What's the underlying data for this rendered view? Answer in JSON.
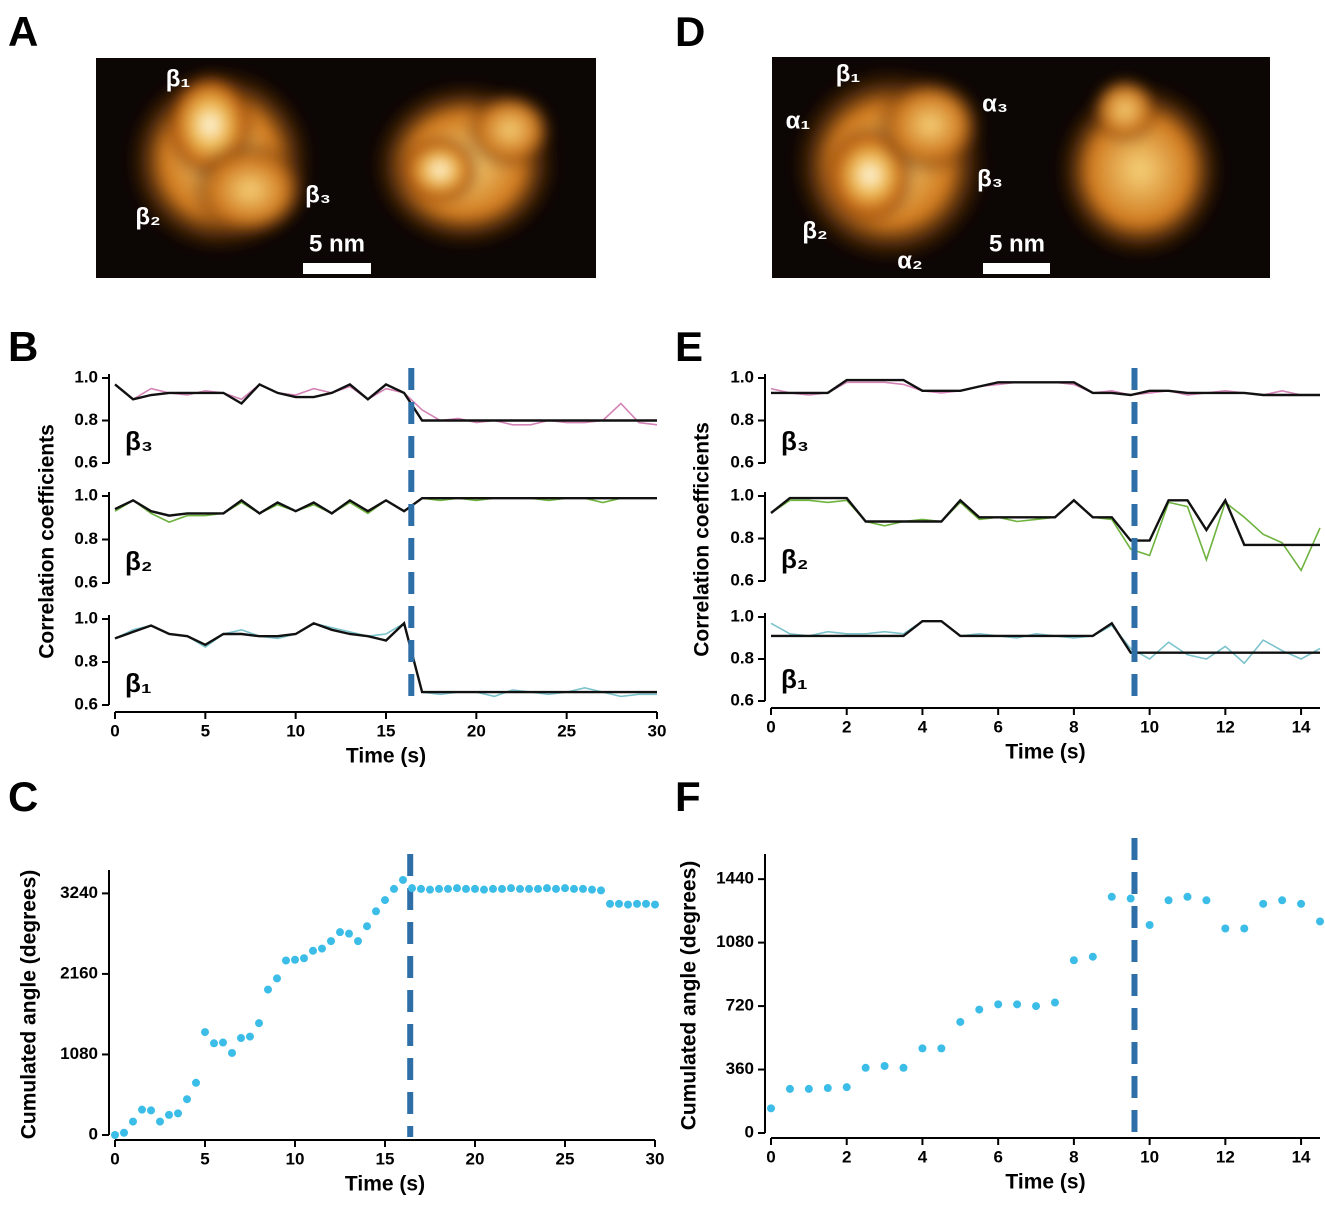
{
  "panel_labels": [
    "A",
    "B",
    "C",
    "D",
    "E",
    "F"
  ],
  "images": [
    {
      "labels": [
        "β₁",
        "β₂",
        "β₃"
      ],
      "scale_bar": "5 nm"
    },
    {
      "labels": [
        "β₁",
        "α₁",
        "α₃",
        "β₃",
        "β₂",
        "α₂"
      ],
      "scale_bar": "5 nm"
    }
  ],
  "chart_data": [
    {
      "type": "line",
      "xlabel": "Time (s)",
      "ylabel": "Correlation coefficients",
      "xlim": [
        0,
        30
      ],
      "xticks": [
        0,
        5,
        10,
        15,
        20,
        25,
        30
      ],
      "marker_x": 16.4,
      "marker_color": "#2f6fa8",
      "x": [
        0,
        1,
        2,
        3,
        4,
        5,
        6,
        7,
        8,
        9,
        10,
        11,
        12,
        13,
        14,
        15,
        16,
        17,
        18,
        19,
        20,
        21,
        22,
        23,
        24,
        25,
        26,
        27,
        28,
        29,
        30
      ],
      "subplots": [
        {
          "label": "β₃",
          "ylim": [
            0.6,
            1.0
          ],
          "yticks": [
            0.6,
            0.8,
            {
              "value": 1.0,
              "label": "1.0"
            }
          ],
          "trace": {
            "color": "#d383b6",
            "values": [
              0.97,
              0.9,
              0.95,
              0.93,
              0.92,
              0.94,
              0.93,
              0.9,
              0.97,
              0.93,
              0.92,
              0.95,
              0.93,
              0.96,
              0.9,
              0.95,
              0.93,
              0.85,
              0.8,
              0.81,
              0.79,
              0.8,
              0.78,
              0.78,
              0.8,
              0.79,
              0.79,
              0.8,
              0.88,
              0.79,
              0.78
            ]
          },
          "fit": {
            "color": "#111111",
            "values": [
              0.97,
              0.9,
              0.92,
              0.93,
              0.93,
              0.93,
              0.93,
              0.88,
              0.97,
              0.93,
              0.91,
              0.91,
              0.93,
              0.97,
              0.9,
              0.97,
              0.93,
              0.8,
              0.8,
              0.8,
              0.8,
              0.8,
              0.8,
              0.8,
              0.8,
              0.8,
              0.8,
              0.8,
              0.8,
              0.8,
              0.8
            ]
          }
        },
        {
          "label": "β₂",
          "ylim": [
            0.6,
            1.0
          ],
          "yticks": [
            0.6,
            0.8,
            {
              "value": 1.0,
              "label": "1.0"
            }
          ],
          "trace": {
            "color": "#6fb33f",
            "values": [
              0.93,
              0.98,
              0.92,
              0.88,
              0.91,
              0.91,
              0.92,
              0.97,
              0.92,
              0.96,
              0.93,
              0.96,
              0.92,
              0.97,
              0.92,
              0.98,
              0.93,
              0.99,
              0.98,
              0.99,
              0.98,
              0.99,
              0.99,
              0.99,
              0.98,
              0.99,
              0.99,
              0.97,
              0.99,
              0.99,
              0.99
            ]
          },
          "fit": {
            "color": "#111111",
            "values": [
              0.94,
              0.98,
              0.93,
              0.91,
              0.92,
              0.92,
              0.92,
              0.98,
              0.92,
              0.97,
              0.93,
              0.97,
              0.92,
              0.98,
              0.93,
              0.98,
              0.93,
              0.99,
              0.99,
              0.99,
              0.99,
              0.99,
              0.99,
              0.99,
              0.99,
              0.99,
              0.99,
              0.99,
              0.99,
              0.99,
              0.99
            ]
          }
        },
        {
          "label": "β₁",
          "ylim": [
            0.6,
            1.0
          ],
          "yticks": [
            0.6,
            0.8,
            {
              "value": 1.0,
              "label": "1.0"
            }
          ],
          "trace": {
            "color": "#7cc3cc",
            "values": [
              0.91,
              0.95,
              0.97,
              0.93,
              0.92,
              0.87,
              0.93,
              0.95,
              0.92,
              0.91,
              0.93,
              0.98,
              0.96,
              0.94,
              0.92,
              0.93,
              0.98,
              0.66,
              0.65,
              0.66,
              0.66,
              0.64,
              0.67,
              0.66,
              0.65,
              0.66,
              0.68,
              0.66,
              0.64,
              0.65,
              0.65
            ]
          },
          "fit": {
            "color": "#111111",
            "values": [
              0.91,
              0.94,
              0.97,
              0.93,
              0.92,
              0.88,
              0.93,
              0.93,
              0.92,
              0.92,
              0.93,
              0.98,
              0.95,
              0.93,
              0.92,
              0.9,
              0.98,
              0.66,
              0.66,
              0.66,
              0.66,
              0.66,
              0.66,
              0.66,
              0.66,
              0.66,
              0.66,
              0.66,
              0.66,
              0.66,
              0.66
            ]
          }
        }
      ]
    },
    {
      "type": "scatter",
      "xlabel": "Time (s)",
      "ylabel": "Cumulated angle (degrees)",
      "xlim": [
        0,
        30
      ],
      "xticks": [
        0,
        5,
        10,
        15,
        20,
        25,
        30
      ],
      "ylim": [
        0,
        3500
      ],
      "yticks": [
        0,
        1080,
        2160,
        3240
      ],
      "marker_x": 16.4,
      "marker_color": "#2f6fa8",
      "color": "#3bbde8",
      "x": [
        0,
        0.5,
        1,
        1.5,
        2,
        2.5,
        3,
        3.5,
        4,
        4.5,
        5,
        5.5,
        6,
        6.5,
        7,
        7.5,
        8,
        8.5,
        9,
        9.5,
        10,
        10.5,
        11,
        11.5,
        12,
        12.5,
        13,
        13.5,
        14,
        14.5,
        15,
        15.5,
        16,
        16.5,
        17,
        17.5,
        18,
        18.5,
        19,
        19.5,
        20,
        20.5,
        21,
        21.5,
        22,
        22.5,
        23,
        23.5,
        24,
        24.5,
        25,
        25.5,
        26,
        26.5,
        27,
        27.5,
        28,
        28.5,
        29,
        29.5,
        30
      ],
      "values": [
        0,
        30,
        180,
        340,
        330,
        180,
        270,
        290,
        480,
        700,
        1380,
        1230,
        1240,
        1100,
        1300,
        1320,
        1500,
        1950,
        2100,
        2340,
        2350,
        2370,
        2470,
        2500,
        2600,
        2720,
        2700,
        2600,
        2800,
        3000,
        3150,
        3300,
        3420,
        3310,
        3300,
        3290,
        3300,
        3300,
        3310,
        3300,
        3300,
        3290,
        3300,
        3300,
        3310,
        3300,
        3300,
        3300,
        3310,
        3300,
        3310,
        3300,
        3300,
        3290,
        3280,
        3100,
        3100,
        3090,
        3100,
        3100,
        3090
      ]
    },
    {
      "type": "line",
      "xlabel": "Time (s)",
      "ylabel": "Correlation coefficients",
      "xlim": [
        0,
        14.5
      ],
      "xticks": [
        0,
        2,
        4,
        6,
        8,
        10,
        12,
        14
      ],
      "marker_x": 9.6,
      "marker_color": "#2f6fa8",
      "x": [
        0,
        0.5,
        1,
        1.5,
        2,
        2.5,
        3,
        3.5,
        4,
        4.5,
        5,
        5.5,
        6,
        6.5,
        7,
        7.5,
        8,
        8.5,
        9,
        9.5,
        10,
        10.5,
        11,
        11.5,
        12,
        12.5,
        13,
        13.5,
        14,
        14.5
      ],
      "subplots": [
        {
          "label": "β₃",
          "ylim": [
            0.6,
            1.0
          ],
          "yticks": [
            0.6,
            0.8,
            {
              "value": 1.0,
              "label": "1.0"
            }
          ],
          "trace": {
            "color": "#d383b6",
            "values": [
              0.95,
              0.93,
              0.92,
              0.93,
              0.98,
              0.98,
              0.98,
              0.97,
              0.94,
              0.93,
              0.94,
              0.96,
              0.97,
              0.98,
              0.98,
              0.98,
              0.97,
              0.93,
              0.94,
              0.92,
              0.93,
              0.94,
              0.92,
              0.93,
              0.94,
              0.93,
              0.92,
              0.94,
              0.92,
              0.92
            ]
          },
          "fit": {
            "color": "#111111",
            "values": [
              0.93,
              0.93,
              0.93,
              0.93,
              0.99,
              0.99,
              0.99,
              0.99,
              0.94,
              0.94,
              0.94,
              0.96,
              0.98,
              0.98,
              0.98,
              0.98,
              0.98,
              0.93,
              0.93,
              0.92,
              0.94,
              0.94,
              0.93,
              0.93,
              0.93,
              0.93,
              0.92,
              0.92,
              0.92,
              0.92
            ]
          }
        },
        {
          "label": "β₂",
          "ylim": [
            0.6,
            1.0
          ],
          "yticks": [
            0.6,
            0.8,
            {
              "value": 1.0,
              "label": "1.0"
            }
          ],
          "trace": {
            "color": "#6fb33f",
            "values": [
              0.92,
              0.98,
              0.98,
              0.97,
              0.98,
              0.88,
              0.86,
              0.88,
              0.89,
              0.88,
              0.97,
              0.89,
              0.9,
              0.88,
              0.89,
              0.9,
              0.98,
              0.9,
              0.89,
              0.75,
              0.72,
              0.97,
              0.95,
              0.7,
              0.97,
              0.9,
              0.82,
              0.78,
              0.65,
              0.85
            ]
          },
          "fit": {
            "color": "#111111",
            "values": [
              0.92,
              0.99,
              0.99,
              0.99,
              0.99,
              0.88,
              0.88,
              0.88,
              0.88,
              0.88,
              0.98,
              0.9,
              0.9,
              0.9,
              0.9,
              0.9,
              0.98,
              0.9,
              0.9,
              0.79,
              0.79,
              0.98,
              0.98,
              0.84,
              0.98,
              0.77,
              0.77,
              0.77,
              0.77,
              0.77
            ]
          }
        },
        {
          "label": "β₁",
          "ylim": [
            0.6,
            1.0
          ],
          "yticks": [
            0.6,
            0.8,
            {
              "value": 1.0,
              "label": "1.0"
            }
          ],
          "trace": {
            "color": "#7cc3cc",
            "values": [
              0.97,
              0.92,
              0.91,
              0.93,
              0.92,
              0.92,
              0.93,
              0.92,
              0.98,
              0.98,
              0.91,
              0.92,
              0.91,
              0.9,
              0.92,
              0.91,
              0.9,
              0.91,
              0.96,
              0.85,
              0.8,
              0.88,
              0.82,
              0.8,
              0.86,
              0.78,
              0.89,
              0.84,
              0.8,
              0.85
            ]
          },
          "fit": {
            "color": "#111111",
            "values": [
              0.91,
              0.91,
              0.91,
              0.91,
              0.91,
              0.91,
              0.91,
              0.91,
              0.98,
              0.98,
              0.91,
              0.91,
              0.91,
              0.91,
              0.91,
              0.91,
              0.91,
              0.91,
              0.97,
              0.83,
              0.83,
              0.83,
              0.83,
              0.83,
              0.83,
              0.83,
              0.83,
              0.83,
              0.83,
              0.83
            ]
          }
        }
      ]
    },
    {
      "type": "scatter",
      "xlabel": "Time (s)",
      "ylabel": "Cumulated angle (degrees)",
      "xlim": [
        0,
        14.5
      ],
      "xticks": [
        0,
        2,
        4,
        6,
        8,
        10,
        12,
        14
      ],
      "ylim": [
        0,
        1560
      ],
      "yticks": [
        0,
        360,
        720,
        1080,
        1440
      ],
      "marker_x": 9.6,
      "marker_color": "#2f6fa8",
      "color": "#3bbde8",
      "x": [
        0,
        0.5,
        1,
        1.5,
        2,
        2.5,
        3,
        3.5,
        4,
        4.5,
        5,
        5.5,
        6,
        6.5,
        7,
        7.5,
        8,
        8.5,
        9,
        9.5,
        10,
        10.5,
        11,
        11.5,
        12,
        12.5,
        13,
        13.5,
        14,
        14.5
      ],
      "values": [
        140,
        250,
        250,
        255,
        260,
        370,
        380,
        370,
        480,
        480,
        630,
        700,
        730,
        730,
        720,
        740,
        980,
        1000,
        1340,
        1330,
        1180,
        1320,
        1340,
        1320,
        1160,
        1160,
        1300,
        1320,
        1300,
        1200
      ]
    }
  ]
}
